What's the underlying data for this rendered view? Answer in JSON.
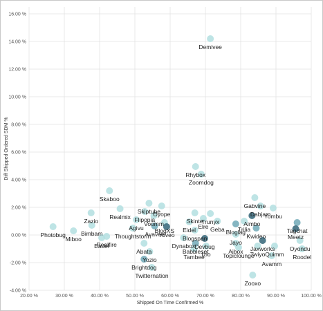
{
  "chart_data": {
    "type": "scatter",
    "title": "",
    "xlabel": "Shipped On Time Confirmed %",
    "ylabel": "Diff Shipped Ordered SDM %",
    "xlim": [
      20,
      100
    ],
    "ylim": [
      -4,
      16.5
    ],
    "x_ticks": [
      "20.00 %",
      "30.00 %",
      "40.00 %",
      "50.00 %",
      "60.00 %",
      "70.00 %",
      "80.00 %",
      "90.00 %",
      "100.00 %"
    ],
    "y_ticks": [
      "-4.00 %",
      "-2.00 %",
      "0.00 %",
      "2.00 %",
      "4.00 %",
      "6.00 %",
      "8.00 %",
      "10.00 %",
      "12.00 %",
      "14.00 %",
      "16.00 %"
    ],
    "grid": "horizontal and vertical",
    "colors": {
      "light": "#b3dfe0",
      "mid": "#79aebb",
      "dark": "#3e6e80"
    },
    "points": [
      {
        "label": "Demivee",
        "x": 71.4,
        "y": 14.2,
        "shade": "light"
      },
      {
        "label": "Rhybox",
        "x": 67.2,
        "y": 4.95,
        "shade": "light"
      },
      {
        "label": "Zoomdog",
        "x": 68.8,
        "y": 4.4,
        "shade": "light"
      },
      {
        "label": "Skaboo",
        "x": 42.8,
        "y": 3.2,
        "shade": "light"
      },
      {
        "label": "Photobug",
        "x": 26.8,
        "y": 0.6,
        "shade": "light"
      },
      {
        "label": "Zazio",
        "x": 37.6,
        "y": 1.6,
        "shade": "light"
      },
      {
        "label": "Bimbam",
        "x": 37.8,
        "y": 0.7,
        "shade": "light"
      },
      {
        "label": "Miboo",
        "x": 32.6,
        "y": 0.3,
        "shade": "light"
      },
      {
        "label": "Eadel",
        "x": 40.6,
        "y": -0.2,
        "shade": "light"
      },
      {
        "label": "Realfire",
        "x": 42.0,
        "y": -0.1,
        "shade": "light"
      },
      {
        "label": "Skiptube",
        "x": 54.0,
        "y": 2.3,
        "shade": "light"
      },
      {
        "label": "Oyope",
        "x": 57.6,
        "y": 2.1,
        "shade": "light"
      },
      {
        "label": "Flipopia",
        "x": 52.8,
        "y": 1.7,
        "shade": "light"
      },
      {
        "label": "Realmix",
        "x": 45.8,
        "y": 1.9,
        "shade": "light"
      },
      {
        "label": "Voomm",
        "x": 55.4,
        "y": 1.4,
        "shade": "light"
      },
      {
        "label": "Agivu",
        "x": 50.4,
        "y": 1.1,
        "shade": "light"
      },
      {
        "label": "BlogXS",
        "x": 58.4,
        "y": 0.9,
        "shade": "light"
      },
      {
        "label": "Thoughtstorm",
        "x": 49.4,
        "y": 0.5,
        "shade": "light"
      },
      {
        "label": "Avavee",
        "x": 55.6,
        "y": 0.65,
        "shade": "mid"
      },
      {
        "label": "Yoveo",
        "x": 59.0,
        "y": 0.6,
        "shade": "dark"
      },
      {
        "label": "Abata",
        "x": 52.6,
        "y": -0.6,
        "shade": "light"
      },
      {
        "label": "Yozio",
        "x": 54.2,
        "y": -1.2,
        "shade": "light"
      },
      {
        "label": "Brightdog",
        "x": 52.6,
        "y": -1.75,
        "shade": "mid"
      },
      {
        "label": "Twitternation",
        "x": 54.8,
        "y": -2.35,
        "shade": "light"
      },
      {
        "label": "Skinte",
        "x": 67.0,
        "y": 1.6,
        "shade": "light"
      },
      {
        "label": "Trunyx",
        "x": 71.4,
        "y": 1.55,
        "shade": "light"
      },
      {
        "label": "Eidel",
        "x": 65.4,
        "y": 0.95,
        "shade": "light"
      },
      {
        "label": "Elre",
        "x": 69.4,
        "y": 1.2,
        "shade": "light"
      },
      {
        "label": "Geba",
        "x": 73.4,
        "y": 1.0,
        "shade": "light"
      },
      {
        "label": "Blogspan",
        "x": 67.0,
        "y": 0.35,
        "shade": "light"
      },
      {
        "label": "Dynabox",
        "x": 63.8,
        "y": -0.2,
        "shade": "light"
      },
      {
        "label": "Devbug",
        "x": 69.8,
        "y": -0.25,
        "shade": "dark"
      },
      {
        "label": "Babbleset",
        "x": 67.2,
        "y": -0.6,
        "shade": "mid"
      },
      {
        "label": "Izio",
        "x": 70.2,
        "y": -0.8,
        "shade": "light"
      },
      {
        "label": "Tambee",
        "x": 66.8,
        "y": -1.0,
        "shade": "light"
      },
      {
        "label": "Aibox",
        "x": 78.6,
        "y": -0.6,
        "shade": "light"
      },
      {
        "label": "Topiclounge",
        "x": 79.4,
        "y": -0.9,
        "shade": "light"
      },
      {
        "label": "Jayo",
        "x": 78.6,
        "y": 0.05,
        "shade": "light"
      },
      {
        "label": "Trilia",
        "x": 81.0,
        "y": 1.0,
        "shade": "light"
      },
      {
        "label": "Bloglag",
        "x": 78.6,
        "y": 0.8,
        "shade": "mid"
      },
      {
        "label": "Gabvine",
        "x": 84.0,
        "y": 2.7,
        "shade": "light"
      },
      {
        "label": "Dabjam",
        "x": 85.6,
        "y": 2.1,
        "shade": "light"
      },
      {
        "label": "Yombu",
        "x": 89.2,
        "y": 1.95,
        "shade": "light"
      },
      {
        "label": "Aimbo",
        "x": 83.2,
        "y": 1.4,
        "shade": "dark"
      },
      {
        "label": "Kwideo",
        "x": 84.4,
        "y": 0.5,
        "shade": "mid"
      },
      {
        "label": "Jaxworks",
        "x": 86.2,
        "y": -0.4,
        "shade": "dark"
      },
      {
        "label": "Twiyo",
        "x": 84.8,
        "y": -0.8,
        "shade": "light"
      },
      {
        "label": "Quimm",
        "x": 89.6,
        "y": -0.8,
        "shade": "light"
      },
      {
        "label": "Avamm",
        "x": 88.8,
        "y": -1.5,
        "shade": "light"
      },
      {
        "label": "Tagchat",
        "x": 96.0,
        "y": 0.9,
        "shade": "mid"
      },
      {
        "label": "Meetz",
        "x": 95.6,
        "y": 0.45,
        "shade": "dark"
      },
      {
        "label": "Oyondu",
        "x": 96.8,
        "y": -0.4,
        "shade": "light"
      },
      {
        "label": "Roodel",
        "x": 97.4,
        "y": -1.0,
        "shade": "light"
      },
      {
        "label": "Zooxo",
        "x": 83.4,
        "y": -2.9,
        "shade": "light"
      }
    ]
  }
}
